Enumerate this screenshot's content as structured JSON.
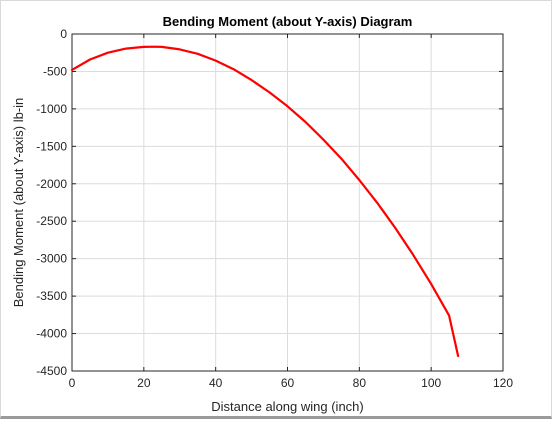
{
  "chart_data": {
    "type": "line",
    "title": "Bending Moment (about Y-axis) Diagram",
    "xlabel": "Distance along wing (inch)",
    "ylabel": "Bending Moment (about Y-axis) lb-in",
    "xlim": [
      0,
      120
    ],
    "ylim": [
      -4500,
      0
    ],
    "xticks": [
      0,
      20,
      40,
      60,
      80,
      100,
      120
    ],
    "yticks": [
      0,
      -500,
      -1000,
      -1500,
      -2000,
      -2500,
      -3000,
      -3500,
      -4000,
      -4500
    ],
    "xtick_labels": [
      "0",
      "20",
      "40",
      "60",
      "80",
      "100",
      "120"
    ],
    "ytick_labels": [
      "0",
      "-500",
      "-1000",
      "-1500",
      "-2000",
      "-2500",
      "-3000",
      "-3500",
      "-4000",
      "-4500"
    ],
    "grid": true,
    "series": [
      {
        "color": "#ff0000",
        "x": [
          0,
          5,
          10,
          15,
          20,
          23,
          25,
          30,
          35,
          40,
          45,
          50,
          55,
          60,
          65,
          70,
          75,
          80,
          85,
          90,
          95,
          100,
          105,
          107.5
        ],
        "y": [
          -480,
          -340,
          -250,
          -195,
          -172,
          -170,
          -172,
          -205,
          -265,
          -355,
          -470,
          -615,
          -780,
          -965,
          -1175,
          -1410,
          -1665,
          -1950,
          -2255,
          -2590,
          -2950,
          -3340,
          -3760,
          -4300
        ]
      }
    ]
  }
}
